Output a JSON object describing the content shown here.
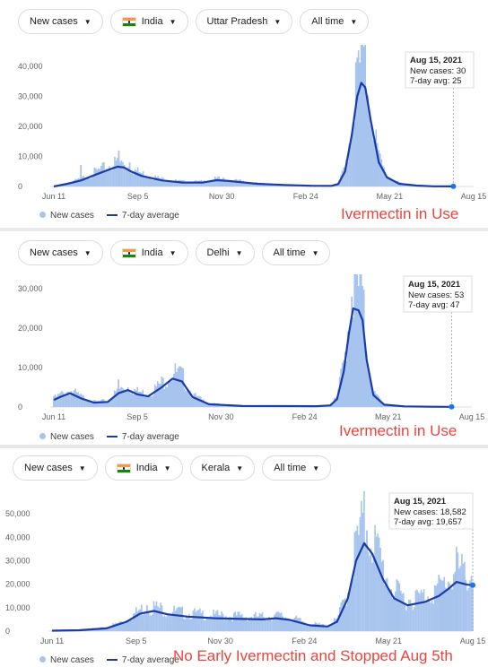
{
  "panels": [
    {
      "filters": {
        "metric": "New cases",
        "country": "India",
        "region": "Uttar Pradesh",
        "range": "All time"
      },
      "tooltip": {
        "date": "Aug 15, 2021",
        "cases_line": "New cases: 30",
        "avg_line": "7-day avg: 25"
      },
      "legend": {
        "bars": "New cases",
        "line": "7-day average"
      },
      "annotation": "Ivermectin in Use",
      "chart_data": {
        "type": "bar",
        "x_ticks": [
          "Jun 11",
          "Sep 5",
          "Nov 30",
          "Feb 24",
          "May 21",
          "Aug 15"
        ],
        "y_ticks": [
          "0",
          "10,000",
          "20,000",
          "30,000",
          "40,000"
        ],
        "ylim": [
          0,
          40000
        ],
        "series": [
          {
            "name": "7-day average",
            "kind": "line",
            "points": [
              [
                0,
                0
              ],
              [
                10,
                900
              ],
              [
                20,
                2000
              ],
              [
                30,
                3800
              ],
              [
                40,
                5500
              ],
              [
                47,
                6600
              ],
              [
                52,
                6300
              ],
              [
                57,
                5000
              ],
              [
                65,
                3500
              ],
              [
                80,
                2000
              ],
              [
                95,
                1300
              ],
              [
                110,
                1300
              ],
              [
                120,
                2100
              ],
              [
                130,
                1800
              ],
              [
                150,
                900
              ],
              [
                170,
                500
              ],
              [
                190,
                250
              ],
              [
                205,
                200
              ],
              [
                210,
                800
              ],
              [
                215,
                5000
              ],
              [
                220,
                17000
              ],
              [
                224,
                30000
              ],
              [
                227,
                34500
              ],
              [
                230,
                33000
              ],
              [
                234,
                22000
              ],
              [
                240,
                8000
              ],
              [
                246,
                3000
              ],
              [
                255,
                900
              ],
              [
                268,
                300
              ],
              [
                280,
                60
              ],
              [
                295,
                25
              ]
            ]
          },
          {
            "name": "New cases",
            "kind": "bars",
            "spikes": [
              [
                20,
                7200
              ],
              [
                48,
                12000
              ],
              [
                56,
                8000
              ],
              [
                225,
                38000
              ],
              [
                229,
                36500
              ]
            ]
          }
        ]
      }
    },
    {
      "filters": {
        "metric": "New cases",
        "country": "India",
        "region": "Delhi",
        "range": "All time"
      },
      "tooltip": {
        "date": "Aug 15, 2021",
        "cases_line": "New cases: 53",
        "avg_line": "7-day avg: 47"
      },
      "legend": {
        "bars": "New cases",
        "line": "7-day average"
      },
      "annotation": "Ivermectin in Use",
      "chart_data": {
        "type": "bar",
        "x_ticks": [
          "Jun 11",
          "Sep 5",
          "Nov 30",
          "Feb 24",
          "May 21",
          "Aug 15"
        ],
        "y_ticks": [
          "0",
          "10,000",
          "20,000",
          "30,000"
        ],
        "ylim": [
          0,
          30000
        ],
        "series": [
          {
            "name": "7-day average",
            "kind": "line",
            "points": [
              [
                0,
                1800
              ],
              [
                5,
                2600
              ],
              [
                12,
                3500
              ],
              [
                20,
                2200
              ],
              [
                30,
                1100
              ],
              [
                40,
                1300
              ],
              [
                48,
                3500
              ],
              [
                55,
                4300
              ],
              [
                62,
                3200
              ],
              [
                70,
                2700
              ],
              [
                80,
                5000
              ],
              [
                88,
                7200
              ],
              [
                95,
                6500
              ],
              [
                103,
                2500
              ],
              [
                115,
                700
              ],
              [
                140,
                250
              ],
              [
                175,
                220
              ],
              [
                195,
                200
              ],
              [
                205,
                400
              ],
              [
                210,
                2000
              ],
              [
                215,
                9000
              ],
              [
                219,
                19000
              ],
              [
                222,
                25000
              ],
              [
                226,
                24500
              ],
              [
                229,
                22000
              ],
              [
                232,
                12000
              ],
              [
                237,
                3000
              ],
              [
                245,
                600
              ],
              [
                260,
                150
              ],
              [
                280,
                60
              ],
              [
                295,
                47
              ]
            ]
          },
          {
            "name": "New cases",
            "kind": "bars",
            "spikes": [
              [
                0,
                2800
              ],
              [
                48,
                7000
              ],
              [
                90,
                8500
              ],
              [
                221,
                28000
              ],
              [
                228,
                27000
              ]
            ]
          }
        ]
      }
    },
    {
      "filters": {
        "metric": "New cases",
        "country": "India",
        "region": "Kerala",
        "range": "All time"
      },
      "tooltip": {
        "date": "Aug 15, 2021",
        "cases_line": "New cases: 18,582",
        "avg_line": "7-day avg: 19,657"
      },
      "legend": {
        "bars": "New cases",
        "line": "7-day average"
      },
      "annotation": "No Early Ivermectin and Stopped Aug 5th",
      "chart_data": {
        "type": "bar",
        "x_ticks": [
          "Jun 11",
          "Sep 5",
          "Nov 30",
          "Feb 24",
          "May 21",
          "Aug 15"
        ],
        "y_ticks": [
          "0",
          "10,000",
          "20,000",
          "30,000",
          "40,000",
          "50,000"
        ],
        "ylim": [
          0,
          52000
        ],
        "series": [
          {
            "name": "7-day average",
            "kind": "line",
            "points": [
              [
                0,
                200
              ],
              [
                20,
                400
              ],
              [
                40,
                1200
              ],
              [
                55,
                4000
              ],
              [
                65,
                7500
              ],
              [
                75,
                8600
              ],
              [
                85,
                7200
              ],
              [
                100,
                6200
              ],
              [
                120,
                5500
              ],
              [
                140,
                5200
              ],
              [
                155,
                5000
              ],
              [
                165,
                5500
              ],
              [
                175,
                4800
              ],
              [
                190,
                2500
              ],
              [
                203,
                2000
              ],
              [
                210,
                4000
              ],
              [
                218,
                14000
              ],
              [
                224,
                30000
              ],
              [
                230,
                37500
              ],
              [
                236,
                33000
              ],
              [
                244,
                22000
              ],
              [
                252,
                14000
              ],
              [
                262,
                11000
              ],
              [
                275,
                12500
              ],
              [
                285,
                15000
              ],
              [
                292,
                18000
              ],
              [
                298,
                21000
              ],
              [
                306,
                19800
              ],
              [
                310,
                19657
              ]
            ]
          },
          {
            "name": "New cases",
            "kind": "bars",
            "spikes": [
              [
                70,
                11000
              ],
              [
                226,
                41000
              ],
              [
                232,
                43000
              ],
              [
                237,
                32000
              ],
              [
                298,
                36000
              ],
              [
                304,
                23000
              ]
            ]
          }
        ]
      }
    }
  ]
}
